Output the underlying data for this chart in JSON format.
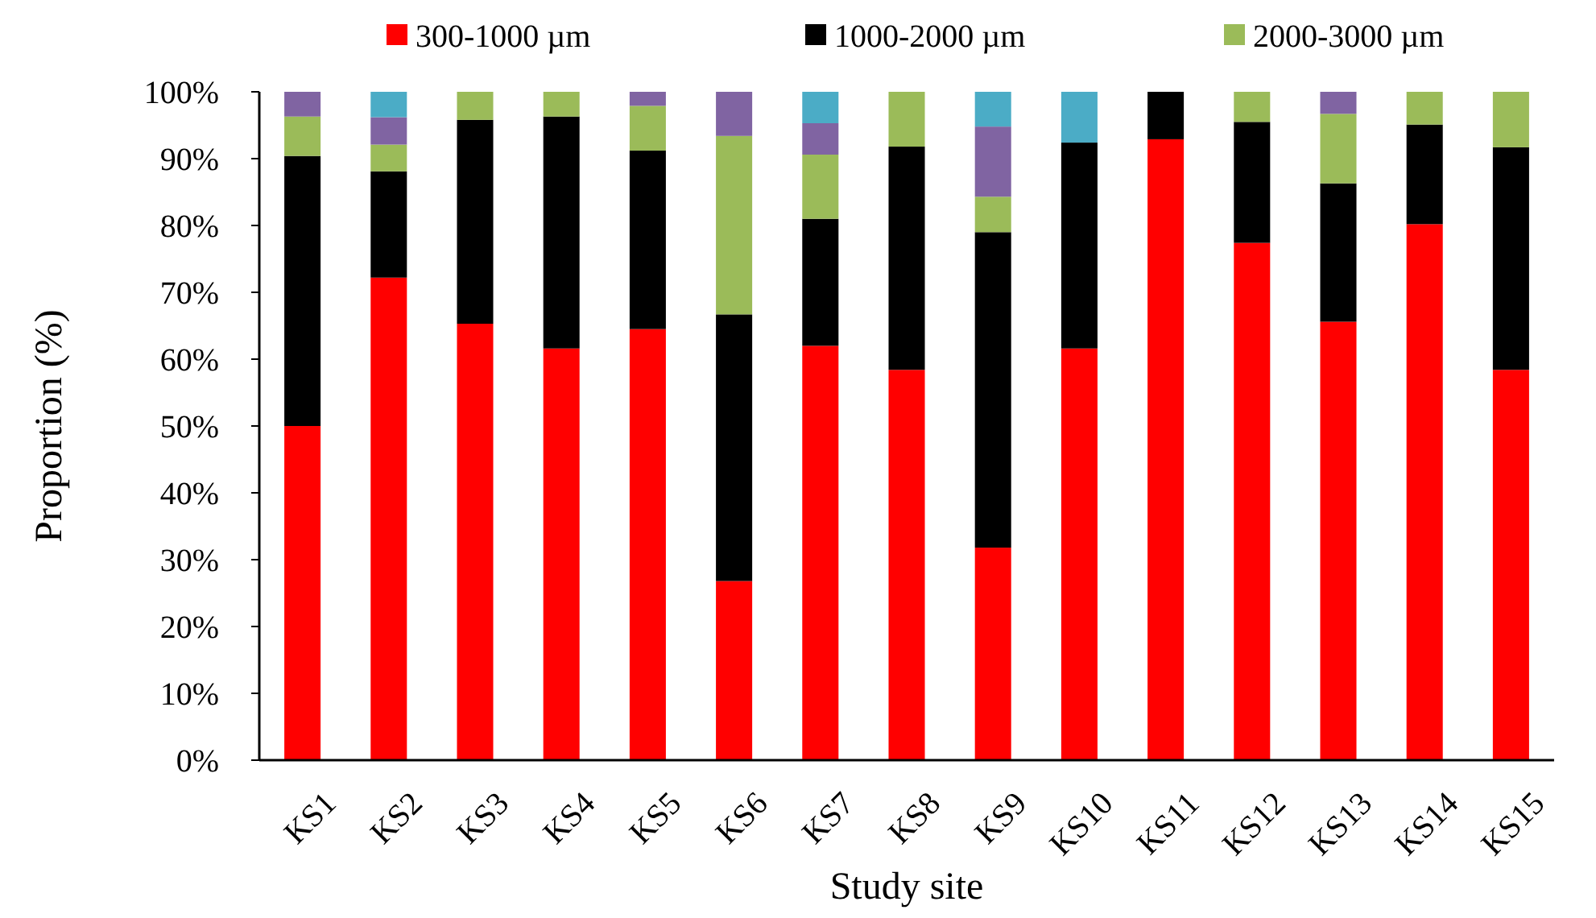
{
  "chart_data": {
    "type": "bar",
    "stacked": true,
    "xlabel": "Study site",
    "ylabel": "Proportion (%)",
    "legend": "top",
    "grid": false,
    "categories": [
      "KS1",
      "KS2",
      "KS3",
      "KS4",
      "KS5",
      "KS6",
      "KS7",
      "KS8",
      "KS9",
      "KS10",
      "KS11",
      "KS12",
      "KS13",
      "KS14",
      "KS15"
    ],
    "ylim": [
      0,
      100
    ],
    "yticks": [
      {
        "value": 0,
        "label": "0%"
      },
      {
        "value": 10,
        "label": "10%"
      },
      {
        "value": 20,
        "label": "20%"
      },
      {
        "value": 30,
        "label": "30%"
      },
      {
        "value": 40,
        "label": "40%"
      },
      {
        "value": 50,
        "label": "50%"
      },
      {
        "value": 60,
        "label": "60%"
      },
      {
        "value": 70,
        "label": "70%"
      },
      {
        "value": 80,
        "label": "80%"
      },
      {
        "value": 90,
        "label": "90%"
      },
      {
        "value": 100,
        "label": "100%"
      }
    ],
    "series": [
      {
        "name": "300-1000 µm",
        "color": "#ff0000",
        "values": [
          50,
          72.2,
          65.3,
          61.6,
          64.5,
          26.8,
          62,
          58.4,
          31.8,
          61.6,
          92.9,
          77.4,
          65.6,
          80.2,
          58.4
        ]
      },
      {
        "name": "1000-2000 µm",
        "color": "#000000",
        "values": [
          40.4,
          15.9,
          30.5,
          34.7,
          26.7,
          39.9,
          19,
          33.4,
          47.2,
          30.8,
          7.1,
          18.1,
          20.7,
          14.9,
          33.3
        ]
      },
      {
        "name": "2000-3000 µm",
        "color": "#9bbb59",
        "values": [
          5.9,
          4,
          4.2,
          3.7,
          6.7,
          26.7,
          9.6,
          8.2,
          5.3,
          0,
          0,
          4.5,
          10.4,
          4.9,
          8.3
        ]
      },
      {
        "color": "#8064a2",
        "values": [
          3.7,
          4.1,
          0,
          0,
          2.1,
          6.6,
          4.7,
          0,
          10.5,
          0,
          0,
          0,
          3.3,
          0,
          0
        ]
      },
      {
        "color": "#4bacc6",
        "values": [
          0,
          3.8,
          0,
          0,
          0,
          0,
          4.7,
          0,
          5.2,
          7.6,
          0,
          0,
          0,
          0,
          0
        ]
      }
    ]
  }
}
